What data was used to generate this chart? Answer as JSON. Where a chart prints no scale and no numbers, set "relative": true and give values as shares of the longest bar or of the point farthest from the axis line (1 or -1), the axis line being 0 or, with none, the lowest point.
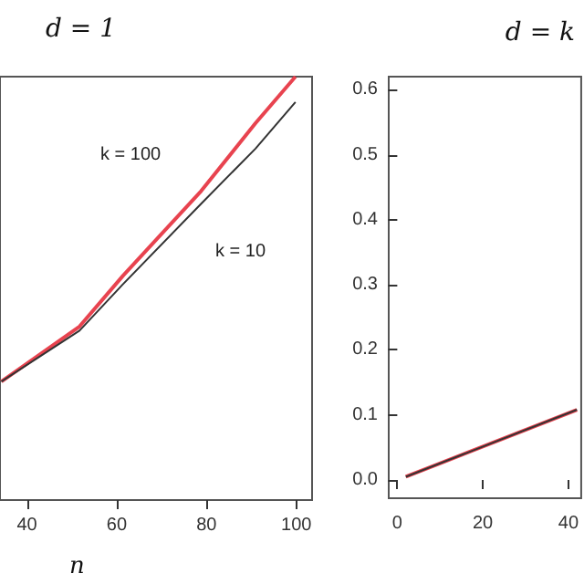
{
  "chart_data": [
    {
      "type": "line",
      "title": "d = 1",
      "xlabel": "n",
      "relative": true,
      "xlim": [
        34,
        103.5
      ],
      "xticks": [
        40,
        60,
        80,
        100
      ],
      "grid": false,
      "marker": "none",
      "line_style": "solid",
      "series": [
        {
          "color": "#e8434f",
          "x": [
            34.3,
            51.7,
            61.4,
            78.8,
            90.9,
            99.8
          ],
          "values": [
            0.28,
            0.41,
            0.53,
            0.73,
            0.89,
            1
          ]
        },
        {
          "color": "#333333",
          "x": [
            34.3,
            51.7,
            61.4,
            78.8,
            90.9,
            99.8
          ],
          "values": [
            0.28,
            0.4,
            0.51,
            0.7,
            0.83,
            0.94
          ]
        }
      ],
      "annotations": [
        "k = 100",
        "k = 10"
      ]
    },
    {
      "type": "line",
      "title": "d = k",
      "xlim": [
        -2,
        43
      ],
      "xticks": [
        0,
        20,
        40
      ],
      "ylim": [
        -0.028,
        0.62
      ],
      "yticks": [
        {
          "value": 0,
          "label": "0.0"
        },
        0.1,
        0.2,
        0.3,
        0.4,
        0.5,
        0.6
      ],
      "grid": false,
      "marker": "none",
      "line_style": "solid",
      "series": [
        {
          "color": "#e8434f",
          "x": [
            2,
            42
          ],
          "values": [
            0.005,
            0.108
          ]
        },
        {
          "color": "#333333",
          "x": [
            2,
            42
          ],
          "values": [
            0.005,
            0.108
          ]
        }
      ]
    }
  ]
}
